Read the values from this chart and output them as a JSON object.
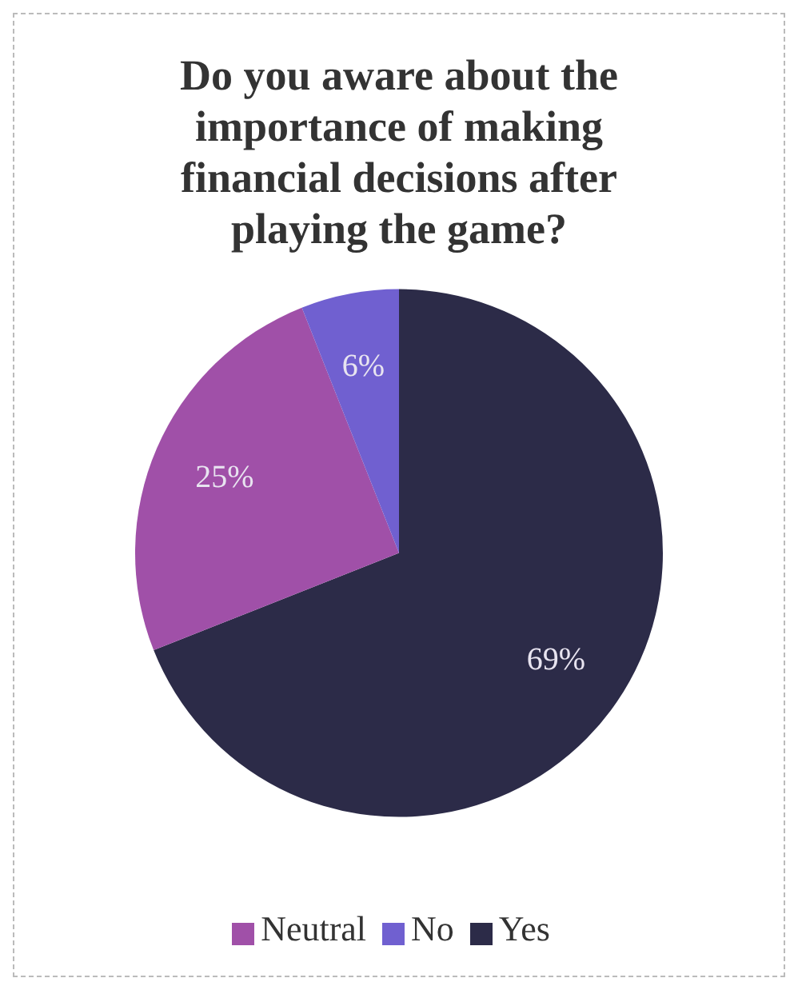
{
  "chart_data": {
    "type": "pie",
    "title": "Do you aware about the importance of making financial decisions after playing the game?",
    "categories": [
      "Yes",
      "Neutral",
      "No"
    ],
    "values": [
      69,
      25,
      6
    ],
    "colors": [
      "#2c2b48",
      "#a050a8",
      "#7060d0"
    ],
    "value_labels": [
      "69%",
      "25%",
      "6%"
    ],
    "legend": "bottom"
  }
}
